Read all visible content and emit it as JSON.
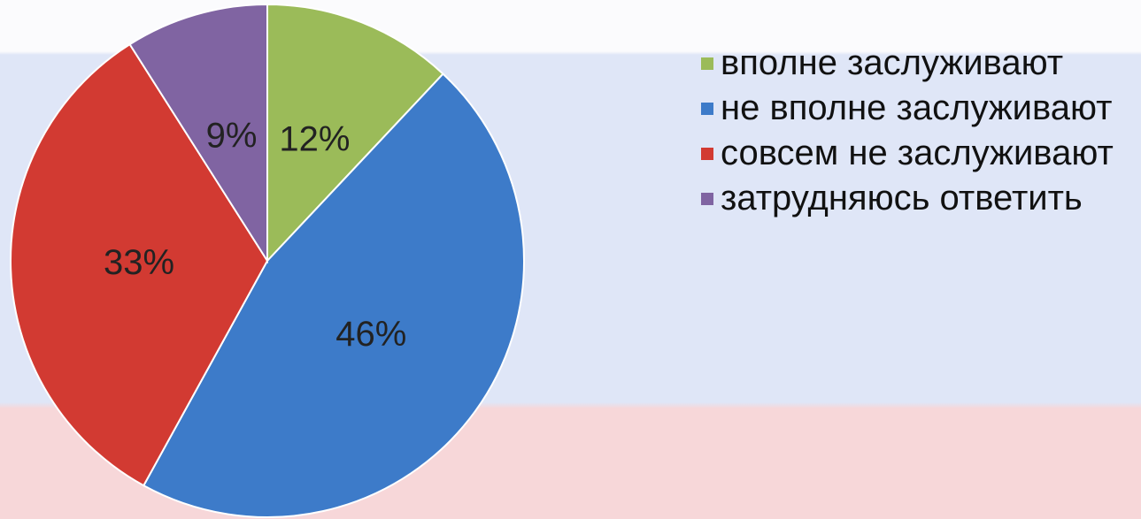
{
  "chart_data": {
    "type": "pie",
    "categories": [
      "вполне заслуживают",
      "не вполне заслуживают",
      "совсем не заслуживают",
      "затрудняюсь ответить"
    ],
    "values": [
      12,
      46,
      33,
      9
    ],
    "value_labels": [
      "12%",
      "46%",
      "33%",
      "9%"
    ],
    "colors": [
      "#9bbb59",
      "#3d7bc9",
      "#d23a32",
      "#8064a2"
    ],
    "legend": "right"
  }
}
